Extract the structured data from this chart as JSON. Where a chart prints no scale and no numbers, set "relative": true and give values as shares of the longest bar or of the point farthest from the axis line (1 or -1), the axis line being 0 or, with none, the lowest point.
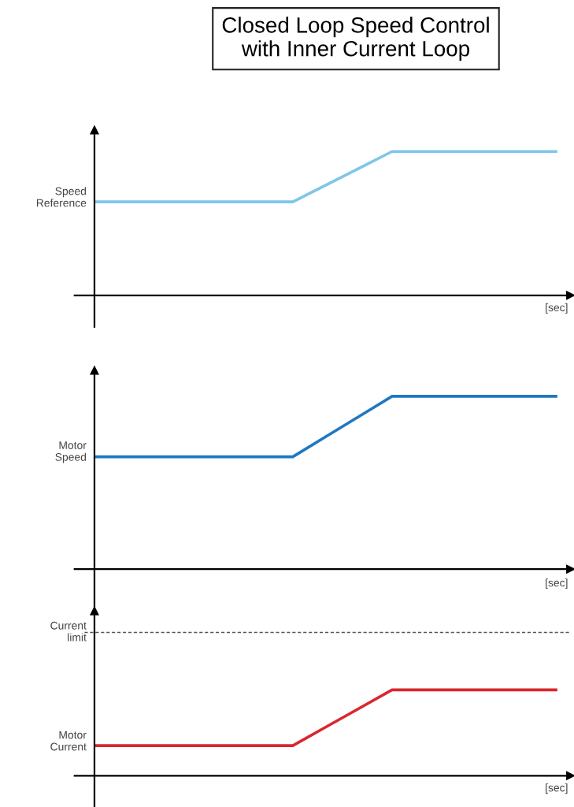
{
  "chart_data": [
    {
      "type": "line",
      "title": "Closed Loop Speed Control\nwith Inner Current Loop",
      "ylabel": "Speed\nReference",
      "xlabel": "[sec]",
      "relative": true,
      "categories": [
        null,
        null,
        null,
        null,
        null,
        null,
        null,
        null,
        null,
        null,
        null,
        null,
        null,
        null,
        null
      ],
      "series": [
        {
          "color": "#7ec6ea",
          "values": [
            0.65,
            0.65,
            0.65,
            0.65,
            0.65,
            0.65,
            0.65,
            0.767,
            0.883,
            1,
            1,
            1,
            1,
            1,
            1
          ]
        }
      ]
    },
    {
      "type": "line",
      "ylabel": "Motor\nSpeed",
      "xlabel": "[sec]",
      "relative": true,
      "categories": [
        null,
        null,
        null,
        null,
        null,
        null,
        null,
        null,
        null,
        null,
        null,
        null,
        null,
        null,
        null
      ],
      "series": [
        {
          "color": "#1f78c1",
          "values": [
            0.65,
            0.65,
            0.65,
            0.65,
            0.65,
            0.65,
            0.65,
            0.767,
            0.883,
            1,
            1,
            1,
            1,
            1,
            1
          ]
        }
      ]
    },
    {
      "type": "line",
      "ylabel": "Motor\nCurrent",
      "xlabel": "[sec]",
      "relative": true,
      "categories": [
        null,
        null,
        null,
        null,
        null,
        null,
        null,
        null,
        null,
        null,
        null,
        null,
        null,
        null,
        null
      ],
      "series": [
        {
          "color": "#d9272e",
          "values": [
            0.35,
            0.35,
            0.35,
            0.35,
            0.35,
            0.35,
            0.35,
            0.567,
            0.783,
            1,
            1,
            1,
            1,
            1,
            1
          ]
        }
      ],
      "ref_lines": [
        {
          "axis": "y",
          "value": 1.67,
          "label": "Current\nlimit",
          "color": "#555555",
          "line_style": "dashed"
        }
      ]
    }
  ]
}
